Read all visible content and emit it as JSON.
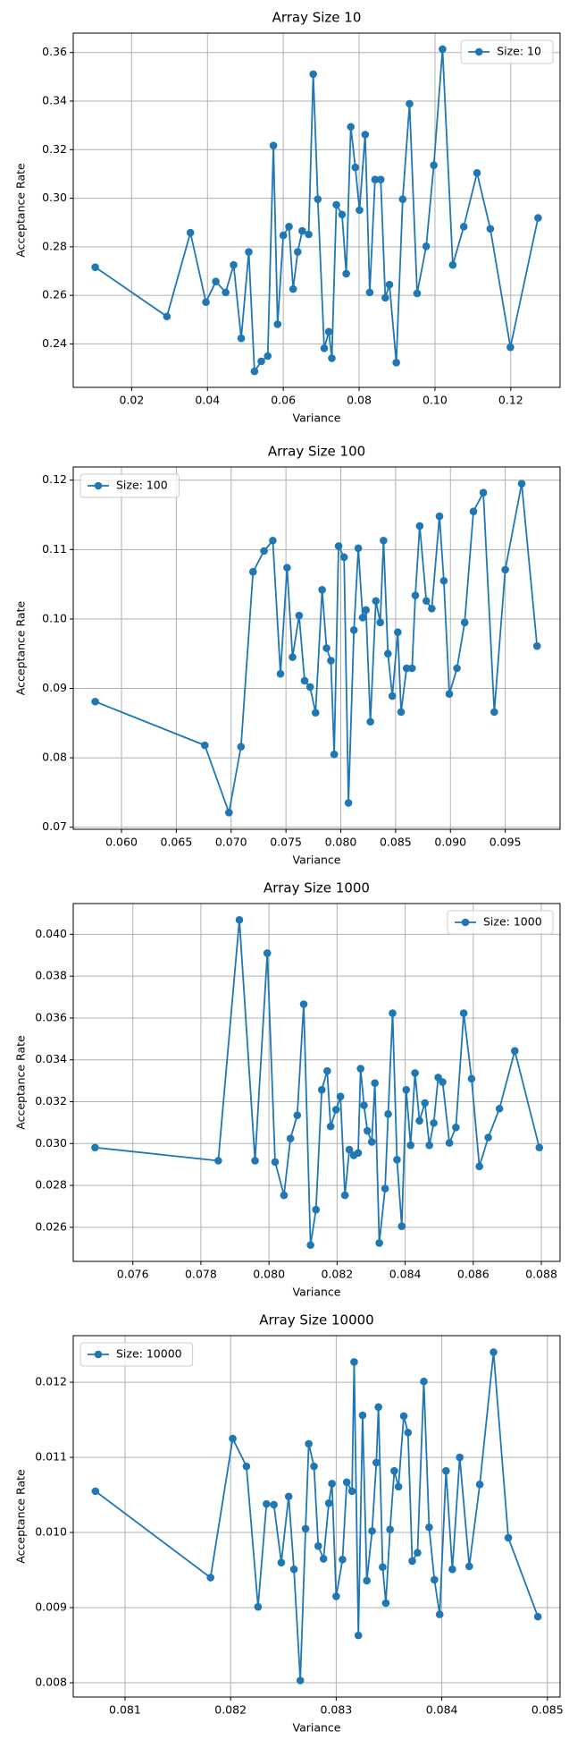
{
  "chart_data": [
    {
      "type": "line",
      "title": "Array Size 10",
      "xlabel": "Variance",
      "ylabel": "Acceptance Rate",
      "legend": "upper right",
      "grid": true,
      "x": [
        0.0104,
        0.0293,
        0.0355,
        0.0396,
        0.0422,
        0.0448,
        0.0469,
        0.0489,
        0.0509,
        0.0524,
        0.0542,
        0.0559,
        0.0574,
        0.0585,
        0.06,
        0.0615,
        0.0626,
        0.0638,
        0.065,
        0.0667,
        0.0679,
        0.0691,
        0.0708,
        0.072,
        0.0728,
        0.074,
        0.0755,
        0.0766,
        0.0778,
        0.079,
        0.0801,
        0.0816,
        0.0828,
        0.0842,
        0.0857,
        0.0869,
        0.088,
        0.0898,
        0.0915,
        0.0933,
        0.0953,
        0.0977,
        0.0997,
        0.102,
        0.1047,
        0.1076,
        0.1111,
        0.1146,
        0.1199,
        0.1272
      ],
      "series": [
        {
          "name": "Size: 10",
          "color": "#1f77b4",
          "values": [
            0.2716,
            0.2513,
            0.2858,
            0.2572,
            0.2657,
            0.2612,
            0.2725,
            0.2423,
            0.2779,
            0.2287,
            0.2328,
            0.235,
            0.3217,
            0.2481,
            0.2847,
            0.2883,
            0.2626,
            0.2779,
            0.2865,
            0.2851,
            0.3511,
            0.2996,
            0.2382,
            0.245,
            0.2341,
            0.2973,
            0.2933,
            0.2689,
            0.3294,
            0.3127,
            0.2951,
            0.3262,
            0.2612,
            0.3077,
            0.3077,
            0.259,
            0.2644,
            0.2323,
            0.2996,
            0.3389,
            0.2608,
            0.2802,
            0.3136,
            0.3614,
            0.2725,
            0.2883,
            0.3104,
            0.2874,
            0.2386,
            0.2919
          ]
        }
      ],
      "xlim": [
        0.0046,
        0.133
      ],
      "ylim": [
        0.2221,
        0.368
      ],
      "xticks": [
        0.02,
        0.04,
        0.06,
        0.08,
        {
          "value": 0.1,
          "label": "0.10"
        },
        0.12
      ],
      "yticks": [
        0.24,
        0.26,
        0.28,
        {
          "value": 0.3,
          "label": "0.30"
        },
        0.32,
        0.34,
        0.36
      ]
    },
    {
      "type": "line",
      "title": "Array Size 100",
      "xlabel": "Variance",
      "ylabel": "Acceptance Rate",
      "legend": "upper left",
      "grid": true,
      "x": [
        0.0576,
        0.0676,
        0.0698,
        0.0709,
        0.072,
        0.073,
        0.0738,
        0.0745,
        0.0751,
        0.0756,
        0.0762,
        0.0767,
        0.0772,
        0.0777,
        0.0783,
        0.0787,
        0.0791,
        0.0794,
        0.0798,
        0.0803,
        0.0807,
        0.0812,
        0.0816,
        0.082,
        0.0823,
        0.0827,
        0.0832,
        0.0836,
        0.0839,
        0.0843,
        0.0847,
        0.0852,
        0.0855,
        0.086,
        0.0865,
        0.0868,
        0.0872,
        0.0878,
        0.0883,
        0.089,
        0.0894,
        0.0899,
        0.0906,
        0.0913,
        0.0921,
        0.093,
        0.094,
        0.095,
        0.0965,
        0.0979
      ],
      "series": [
        {
          "name": "Size: 100",
          "color": "#1f77b4",
          "values": [
            0.0881,
            0.0818,
            0.0721,
            0.0816,
            0.1068,
            0.1098,
            0.1113,
            0.0921,
            0.1074,
            0.0945,
            0.1005,
            0.0911,
            0.0902,
            0.0865,
            0.1042,
            0.0958,
            0.094,
            0.0805,
            0.1105,
            0.1089,
            0.0735,
            0.0984,
            0.1102,
            0.1002,
            0.1013,
            0.0852,
            0.1026,
            0.0995,
            0.1113,
            0.095,
            0.0889,
            0.0981,
            0.0866,
            0.0929,
            0.0929,
            0.1034,
            0.1134,
            0.1026,
            0.1015,
            0.1148,
            0.1055,
            0.0892,
            0.0929,
            0.0995,
            0.1155,
            0.1182,
            0.0866,
            0.1071,
            0.1195,
            0.0961
          ]
        }
      ],
      "xlim": [
        0.0556,
        0.1
      ],
      "ylim": [
        0.0697,
        0.1219
      ],
      "xticks": [
        {
          "value": 0.06,
          "label": "0.060"
        },
        0.065,
        {
          "value": 0.07,
          "label": "0.070"
        },
        0.075,
        {
          "value": 0.08,
          "label": "0.080"
        },
        0.085,
        {
          "value": 0.09,
          "label": "0.090"
        },
        0.095
      ],
      "yticks": [
        0.07,
        0.08,
        0.09,
        {
          "value": 0.1,
          "label": "0.10"
        },
        0.11,
        0.12
      ]
    },
    {
      "type": "line",
      "title": "Array Size 1000",
      "xlabel": "Variance",
      "ylabel": "Acceptance Rate",
      "legend": "upper right",
      "grid": true,
      "x": [
        0.07489,
        0.07851,
        0.07913,
        0.07959,
        0.07995,
        0.08018,
        0.08044,
        0.08063,
        0.08083,
        0.08102,
        0.08122,
        0.08138,
        0.08155,
        0.08171,
        0.08181,
        0.08197,
        0.0821,
        0.08223,
        0.08236,
        0.08249,
        0.08262,
        0.08269,
        0.08279,
        0.08289,
        0.08302,
        0.08311,
        0.08324,
        0.08341,
        0.0835,
        0.08363,
        0.08376,
        0.0839,
        0.08403,
        0.08416,
        0.08429,
        0.08442,
        0.08458,
        0.08471,
        0.08484,
        0.08497,
        0.0851,
        0.0853,
        0.08549,
        0.08572,
        0.08595,
        0.08618,
        0.08644,
        0.08677,
        0.08722,
        0.08794
      ],
      "series": [
        {
          "name": "Size: 1000",
          "color": "#1f77b4",
          "values": [
            0.02981,
            0.02918,
            0.04069,
            0.02918,
            0.0391,
            0.02912,
            0.02753,
            0.03024,
            0.03135,
            0.03666,
            0.02515,
            0.02684,
            0.03257,
            0.03347,
            0.03082,
            0.03162,
            0.03225,
            0.02753,
            0.02971,
            0.02944,
            0.02955,
            0.03358,
            0.03183,
            0.03061,
            0.03008,
            0.03289,
            0.02525,
            0.02785,
            0.03141,
            0.03623,
            0.02923,
            0.02605,
            0.03257,
            0.02992,
            0.03337,
            0.03109,
            0.03194,
            0.02992,
            0.03098,
            0.03316,
            0.03294,
            0.03003,
            0.03077,
            0.03623,
            0.0331,
            0.02891,
            0.03029,
            0.03167,
            0.03443,
            0.02981
          ]
        }
      ],
      "xlim": [
        0.07425,
        0.08855
      ],
      "ylim": [
        0.02437,
        0.04147
      ],
      "xticks": [
        0.076,
        0.078,
        {
          "value": 0.08,
          "label": "0.080"
        },
        0.082,
        0.084,
        0.086,
        0.088
      ],
      "yticks": [
        0.026,
        0.028,
        {
          "value": 0.03,
          "label": "0.030"
        },
        0.032,
        0.034,
        0.036,
        0.038,
        {
          "value": 0.04,
          "label": "0.040"
        }
      ]
    },
    {
      "type": "line",
      "title": "Array Size 10000",
      "xlabel": "Variance",
      "ylabel": "Acceptance Rate",
      "legend": "upper left",
      "grid": true,
      "x": [
        0.08072,
        0.08181,
        0.08202,
        0.08215,
        0.08226,
        0.08234,
        0.08241,
        0.08248,
        0.08255,
        0.0826,
        0.08266,
        0.08271,
        0.08274,
        0.08279,
        0.08283,
        0.08288,
        0.08293,
        0.08296,
        0.083,
        0.08306,
        0.0831,
        0.08315,
        0.08317,
        0.08321,
        0.08325,
        0.08329,
        0.08334,
        0.08338,
        0.0834,
        0.08344,
        0.08347,
        0.08351,
        0.08355,
        0.08359,
        0.08364,
        0.08368,
        0.08372,
        0.08377,
        0.08383,
        0.08388,
        0.08393,
        0.08398,
        0.08404,
        0.0841,
        0.08417,
        0.08426,
        0.08436,
        0.08449,
        0.08463,
        0.08491
      ],
      "series": [
        {
          "name": "Size: 10000",
          "color": "#1f77b4",
          "values": [
            0.01055,
            0.0094,
            0.01125,
            0.01088,
            0.00901,
            0.01038,
            0.01037,
            0.0096,
            0.01048,
            0.00951,
            0.00803,
            0.01005,
            0.01118,
            0.01088,
            0.00982,
            0.00965,
            0.01039,
            0.01065,
            0.00915,
            0.00964,
            0.01067,
            0.01055,
            0.01227,
            0.00863,
            0.01156,
            0.00936,
            0.01002,
            0.01093,
            0.01167,
            0.00954,
            0.00906,
            0.01004,
            0.01082,
            0.01061,
            0.01155,
            0.01133,
            0.00962,
            0.00973,
            0.01201,
            0.01007,
            0.00937,
            0.00891,
            0.01082,
            0.00951,
            0.011,
            0.00955,
            0.01064,
            0.0124,
            0.00993,
            0.00888
          ]
        }
      ],
      "xlim": [
        0.08051,
        0.08512
      ],
      "ylim": [
        0.00781,
        0.01262
      ],
      "xticks": [
        0.081,
        0.082,
        0.083,
        0.084,
        0.085
      ],
      "yticks": [
        0.008,
        0.009,
        {
          "value": 0.01,
          "label": "0.010"
        },
        0.011,
        0.012
      ]
    }
  ]
}
